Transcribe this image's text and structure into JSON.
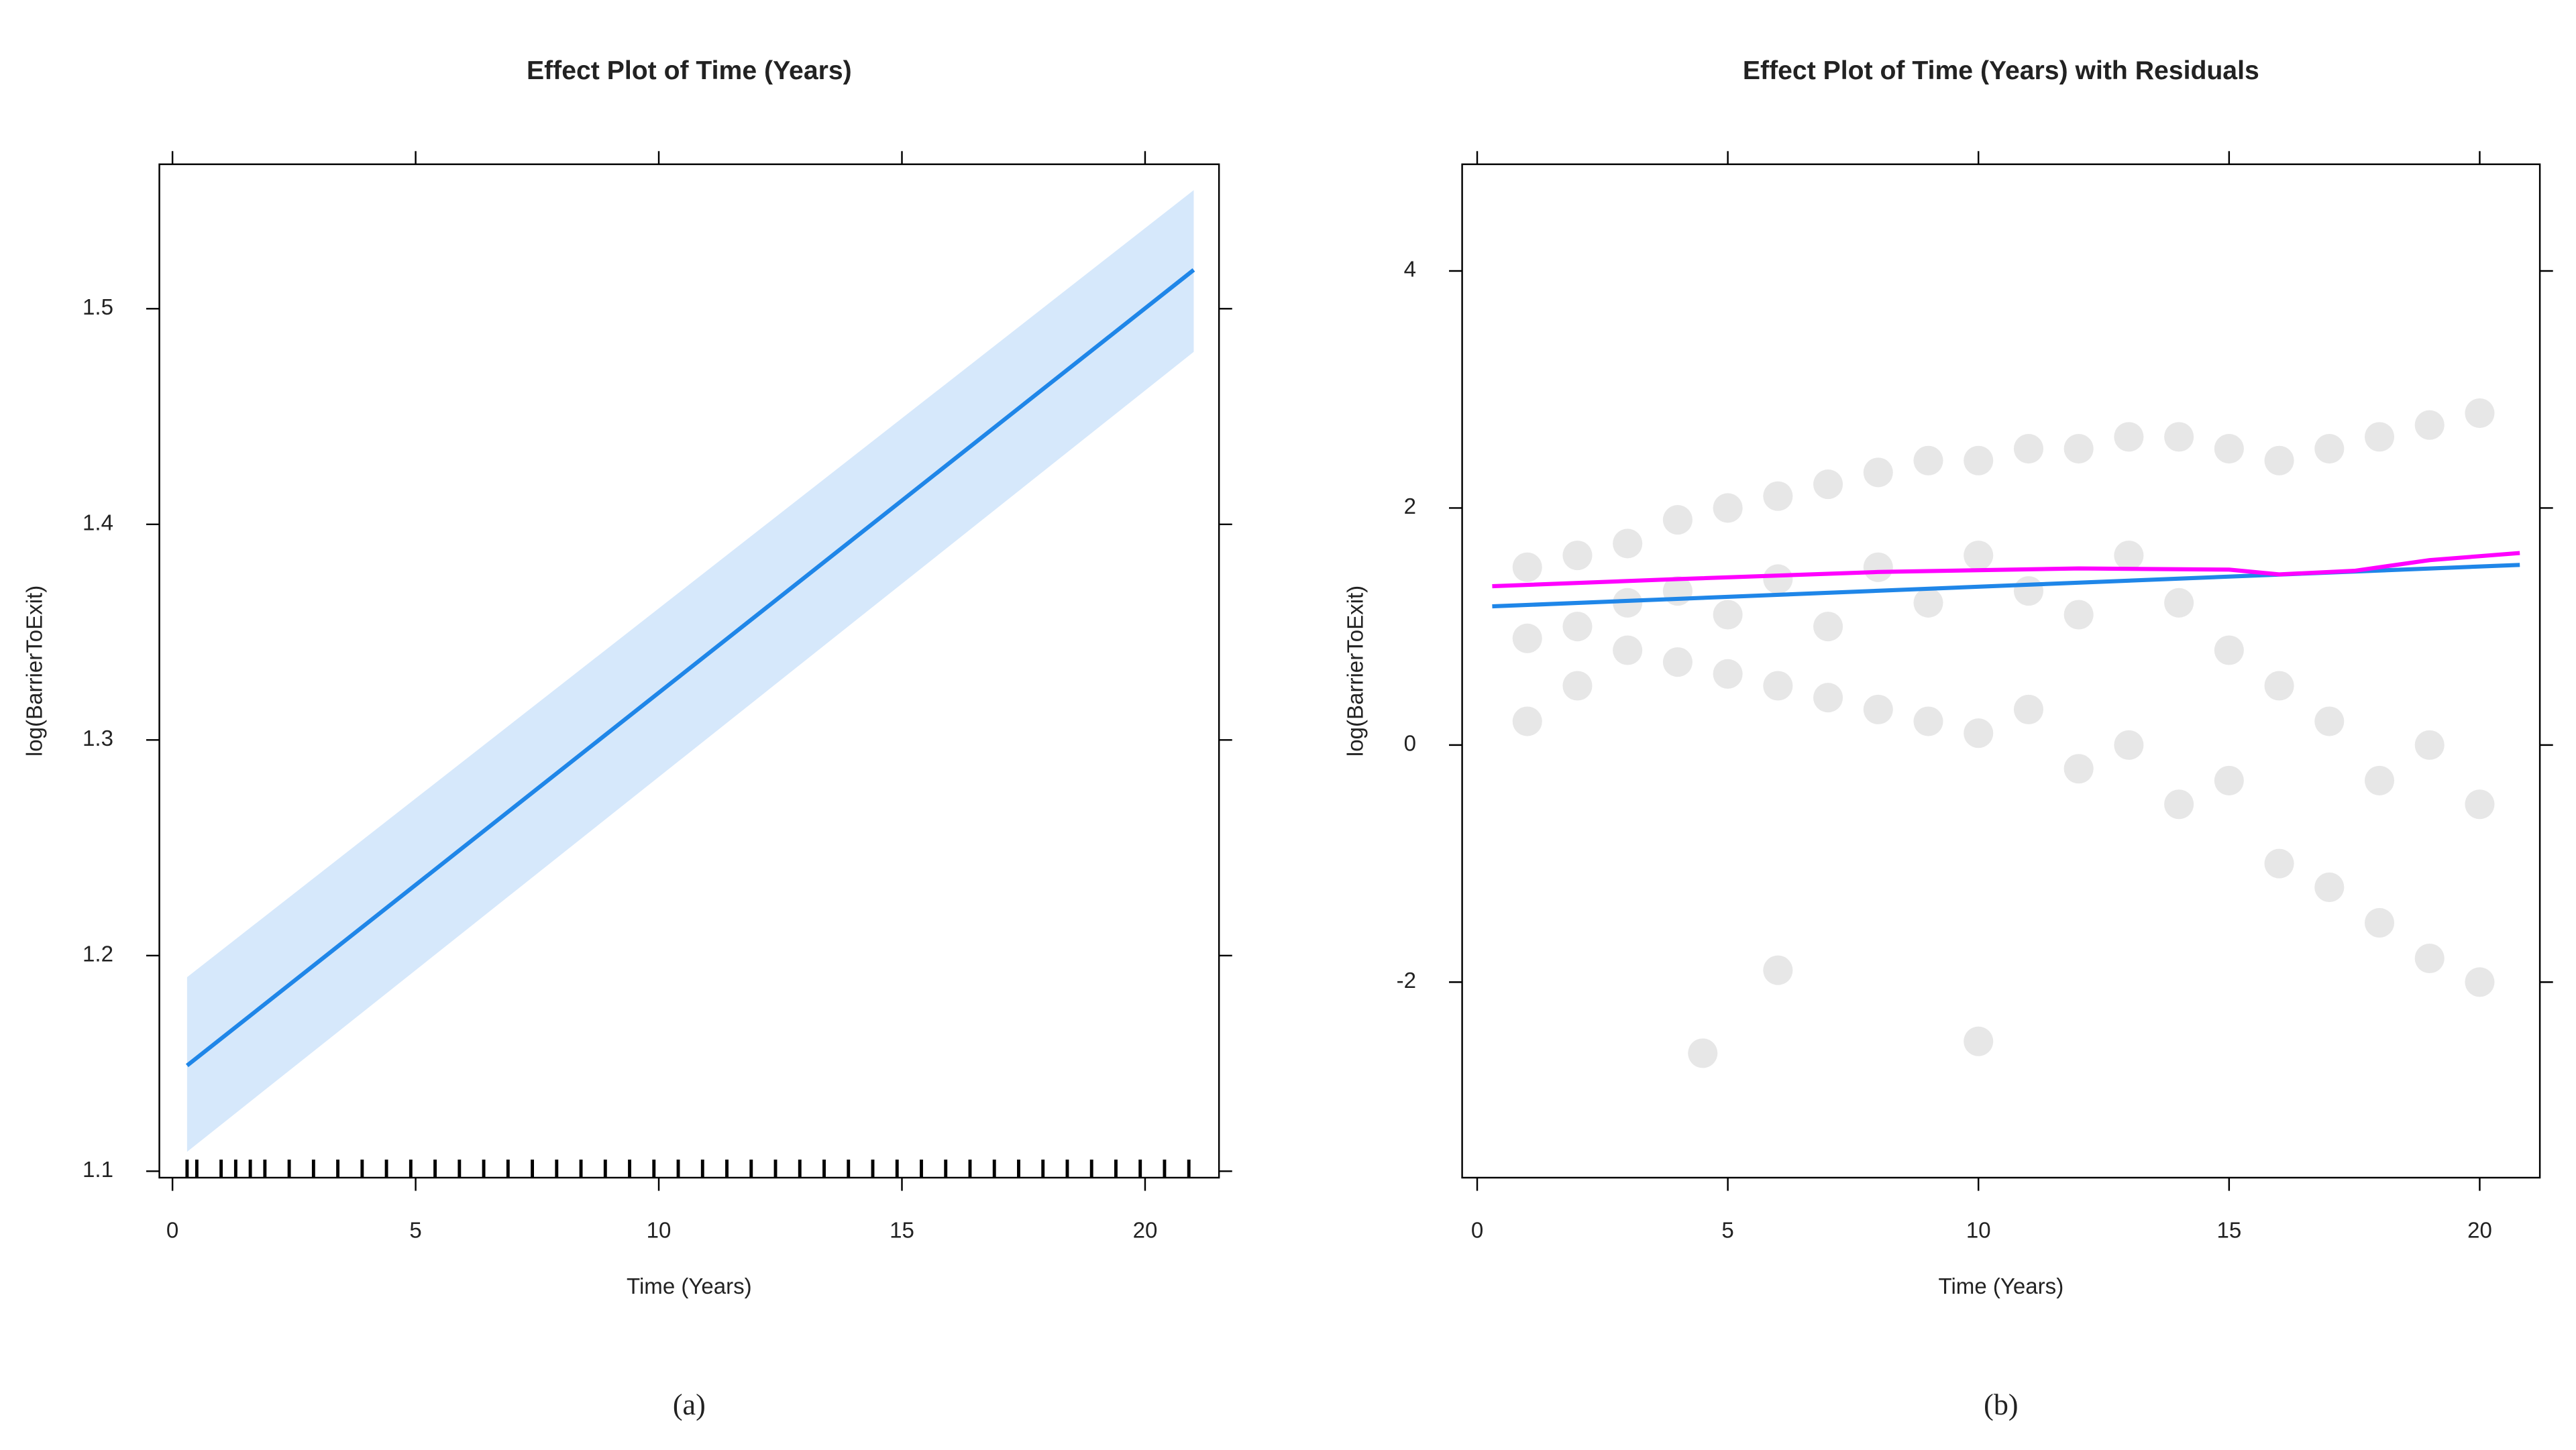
{
  "chart_data": [
    {
      "type": "line",
      "title": "Effect Plot of Time (Years)",
      "x_label": "Time (Years)",
      "y_label": "log(BarrierToExit)",
      "caption": "(a)",
      "x": [
        0.3,
        21
      ],
      "values": [
        1.149,
        1.518
      ],
      "color": "#1f86e8",
      "band_lower": [
        1.109,
        1.48
      ],
      "band_upper": [
        1.19,
        1.555
      ],
      "band_color": "#d6e8fb",
      "rug": [
        0.3,
        0.5,
        1.0,
        1.3,
        1.6,
        1.9,
        2.4,
        2.9,
        3.4,
        3.9,
        4.4,
        4.9,
        5.4,
        5.9,
        6.4,
        6.9,
        7.4,
        7.9,
        8.4,
        8.9,
        9.4,
        9.9,
        10.4,
        10.9,
        11.4,
        11.9,
        12.4,
        12.9,
        13.4,
        13.9,
        14.4,
        14.9,
        15.4,
        15.9,
        16.4,
        16.9,
        17.4,
        17.9,
        18.4,
        18.9,
        19.4,
        19.9,
        20.4,
        20.9
      ],
      "xlim": [
        -0.27,
        21.52
      ],
      "xticks": [
        0,
        5,
        10,
        15,
        20
      ],
      "ylim": [
        1.097,
        1.567
      ],
      "yticks": [
        1.1,
        1.2,
        1.3,
        1.4,
        1.5
      ]
    },
    {
      "type": "line",
      "title": "Effect Plot of Time (Years) with Residuals",
      "x_label": "Time (Years)",
      "y_label": "log(BarrierToExit)",
      "caption": "(b)",
      "x": [
        0.3,
        20.8
      ],
      "values": [
        1.17,
        1.52
      ],
      "color": "#1f86e8",
      "smooth_x": [
        0.3,
        4,
        8,
        12,
        15,
        16,
        17.5,
        19,
        20.8
      ],
      "smooth_values": [
        1.34,
        1.4,
        1.46,
        1.49,
        1.48,
        1.44,
        1.47,
        1.56,
        1.62
      ],
      "smooth_color": "#ff00ff",
      "points_x": [
        1,
        1,
        1,
        2,
        2,
        2,
        3,
        3,
        3,
        4,
        4,
        4,
        5,
        5,
        5,
        6,
        6,
        6,
        7,
        7,
        7,
        8,
        8,
        8,
        9,
        9,
        9,
        10,
        10,
        10,
        11,
        11,
        11,
        12,
        12,
        12,
        13,
        13,
        13,
        14,
        14,
        14,
        15,
        15,
        15,
        16,
        16,
        16,
        17,
        17,
        17,
        18,
        18,
        18,
        19,
        19,
        19,
        20,
        20,
        20,
        4.5,
        6,
        10
      ],
      "points_y": [
        0.9,
        1.5,
        0.2,
        1.0,
        1.6,
        0.5,
        0.8,
        1.7,
        1.2,
        0.7,
        1.9,
        1.3,
        0.6,
        2.0,
        1.1,
        0.5,
        2.1,
        1.4,
        0.4,
        2.2,
        1.0,
        0.3,
        2.3,
        1.5,
        0.2,
        2.4,
        1.2,
        0.1,
        2.4,
        1.6,
        0.3,
        2.5,
        1.3,
        -0.2,
        2.5,
        1.1,
        0.0,
        2.6,
        1.6,
        -0.5,
        2.6,
        1.2,
        -0.3,
        2.5,
        0.8,
        -1.0,
        2.4,
        0.5,
        -1.2,
        2.5,
        0.2,
        -1.5,
        2.6,
        -0.3,
        -1.8,
        2.7,
        0.0,
        -2.0,
        2.8,
        -0.5,
        -2.6,
        -1.9,
        -2.5
      ],
      "points_color": "#d3d3d3",
      "xlim": [
        -0.3,
        21.2
      ],
      "xticks": [
        0,
        5,
        10,
        15,
        20
      ],
      "ylim": [
        -3.65,
        4.9
      ],
      "yticks": [
        -2,
        0,
        2,
        4
      ]
    }
  ]
}
